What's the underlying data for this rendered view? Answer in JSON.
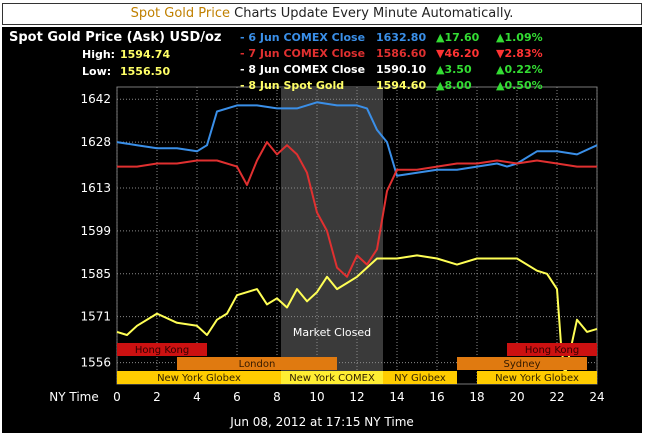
{
  "banner": {
    "accent": "Spot Gold Price",
    "text": " Charts Update Every Minute Automatically."
  },
  "header": {
    "title": "Spot Gold Price (Ask) USD/oz",
    "high_label": "High:",
    "high": "1594.74",
    "low_label": "Low:",
    "low": "1556.50"
  },
  "legend": [
    {
      "label": "- 6 Jun COMEX Close",
      "value": "1632.80",
      "change": "▲17.60",
      "pct": "▲1.09%",
      "dir": "up",
      "color": "#3a8fe8"
    },
    {
      "label": "- 7 Jun COMEX Close",
      "value": "1586.60",
      "change": "▼46.20",
      "pct": "▼2.83%",
      "dir": "down",
      "color": "#e03030"
    },
    {
      "label": "- 8 Jun COMEX Close",
      "value": "1590.10",
      "change": "▲3.50",
      "pct": "▲0.22%",
      "dir": "up",
      "color": "#ffffff"
    },
    {
      "label": "- 8 Jun Spot Gold",
      "value": "1594.60",
      "change": "▲8.00",
      "pct": "▲0.50%",
      "dir": "up",
      "color": "#ffff66"
    }
  ],
  "chart_data": {
    "type": "line",
    "xlabel": "NY Time",
    "x_ticks": [
      0,
      2,
      4,
      6,
      8,
      10,
      12,
      14,
      16,
      18,
      20,
      22,
      24
    ],
    "y_ticks": [
      1556,
      1571,
      1585,
      1599,
      1613,
      1628,
      1642
    ],
    "ylim": [
      1549,
      1646
    ],
    "xlim": [
      0,
      24
    ],
    "shaded_region": {
      "from": 8.2,
      "to": 13.3,
      "label": "Market Closed"
    },
    "series": [
      {
        "name": "6 Jun COMEX",
        "color": "#3a8fe8",
        "x": [
          0,
          1,
          2,
          3,
          4,
          4.5,
          5,
          6,
          7,
          8,
          9,
          10,
          11,
          12,
          12.5,
          13,
          13.5,
          14,
          15,
          16,
          17,
          18,
          19,
          19.5,
          20,
          21,
          22,
          23,
          24
        ],
        "y": [
          1628,
          1627,
          1626,
          1626,
          1625,
          1627,
          1638,
          1640,
          1640,
          1639,
          1639,
          1641,
          1640,
          1640,
          1639,
          1632,
          1628,
          1617,
          1618,
          1619,
          1619,
          1620,
          1621,
          1620,
          1621,
          1625,
          1625,
          1624,
          1627
        ]
      },
      {
        "name": "7 Jun COMEX",
        "color": "#e03030",
        "x": [
          0,
          1,
          2,
          3,
          4,
          5,
          6,
          6.5,
          7,
          7.5,
          8,
          8.5,
          9,
          9.5,
          10,
          10.5,
          11,
          11.5,
          12,
          12.5,
          13,
          13.5,
          14,
          15,
          16,
          17,
          18,
          19,
          20,
          21,
          22,
          23,
          24
        ],
        "y": [
          1620,
          1620,
          1621,
          1621,
          1622,
          1622,
          1620,
          1614,
          1622,
          1628,
          1624,
          1627,
          1624,
          1618,
          1605,
          1599,
          1587,
          1584,
          1591,
          1588,
          1593,
          1612,
          1619,
          1619,
          1620,
          1621,
          1621,
          1622,
          1621,
          1622,
          1621,
          1620,
          1620
        ]
      },
      {
        "name": "8 Jun Spot Gold",
        "color": "#ffff55",
        "x": [
          0,
          0.5,
          1,
          2,
          3,
          4,
          4.5,
          5,
          5.5,
          6,
          7,
          7.5,
          8,
          8.5,
          9,
          9.5,
          10,
          10.5,
          11,
          11.5,
          12,
          13,
          14,
          15,
          16,
          17,
          18,
          19,
          20,
          21,
          21.5,
          22,
          22.2,
          22.4,
          23,
          23.5,
          24
        ],
        "y": [
          1566,
          1565,
          1568,
          1572,
          1569,
          1568,
          1565,
          1570,
          1572,
          1578,
          1580,
          1575,
          1577,
          1574,
          1580,
          1576,
          1579,
          1584,
          1580,
          1582,
          1584,
          1590,
          1590,
          1591,
          1590,
          1588,
          1590,
          1590,
          1590,
          1586,
          1585,
          1580,
          1562,
          1552,
          1570,
          1566,
          1567
        ]
      }
    ],
    "sessions": [
      {
        "label": "Hong Kong",
        "from": 0,
        "to": 4.5,
        "row": 0,
        "color": "#cc1111",
        "text": "#330000"
      },
      {
        "label": "Hong Kong",
        "from": 19.5,
        "to": 24,
        "row": 0,
        "color": "#cc1111",
        "text": "#330000"
      },
      {
        "label": "London",
        "from": 3,
        "to": 11,
        "row": 1,
        "color": "#e07a10",
        "text": "#331a00"
      },
      {
        "label": "Sydney",
        "from": 17,
        "to": 23.5,
        "row": 1,
        "color": "#e07a10",
        "text": "#331a00"
      },
      {
        "label": "New York Globex",
        "from": 0,
        "to": 8.2,
        "row": 2,
        "color": "#ffcc00",
        "text": "#332200"
      },
      {
        "label": "New York COMEX",
        "from": 8.2,
        "to": 13.3,
        "row": 2,
        "color": "#ffee33",
        "text": "#332200"
      },
      {
        "label": "NY Globex",
        "from": 13.3,
        "to": 17,
        "row": 2,
        "color": "#ffcc00",
        "text": "#332200"
      },
      {
        "label": "New York Globex",
        "from": 18,
        "to": 24,
        "row": 2,
        "color": "#ffcc00",
        "text": "#332200"
      }
    ],
    "timestamp": "Jun 08, 2012 at 17:15 NY Time"
  }
}
